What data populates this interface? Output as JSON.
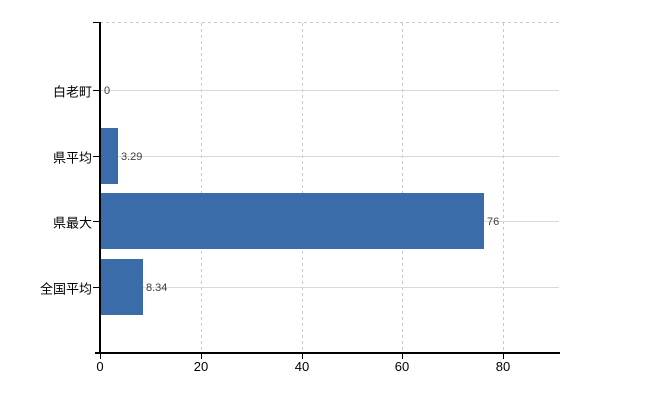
{
  "chart_data": {
    "type": "bar",
    "orientation": "horizontal",
    "title": "",
    "xlabel": "",
    "ylabel": "",
    "categories": [
      "白老町",
      "県平均",
      "県最大",
      "全国平均"
    ],
    "values": [
      0,
      3.29,
      76,
      8.34
    ],
    "value_labels": [
      "0",
      "3.29",
      "76",
      "8.34"
    ],
    "x_ticks": [
      0,
      20,
      40,
      60,
      80
    ],
    "xlim": [
      0,
      91.3
    ],
    "legend": "none",
    "grid": "horizontal-solid, vertical-dashed",
    "colors": {
      "bar": "#3b6caa",
      "axis": "#000000",
      "grid_solid": "#d9d9d9",
      "grid_dashed": "#c9c9c9",
      "value_label": "#404040",
      "tick_label": "#000000",
      "background": "#ffffff"
    }
  }
}
